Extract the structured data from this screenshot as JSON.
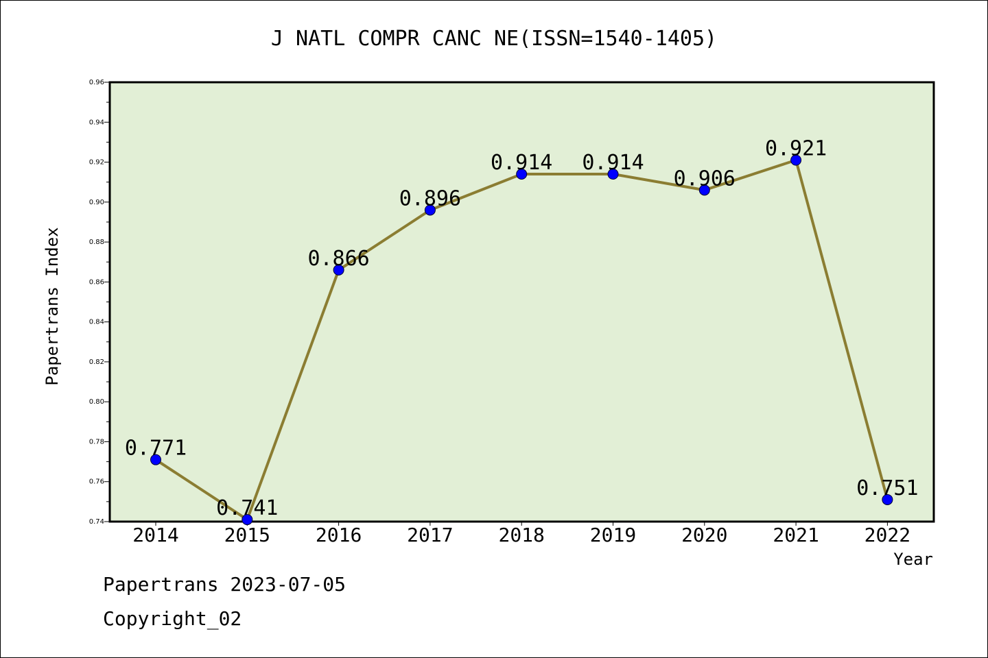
{
  "chart_data": {
    "type": "line",
    "title": "J NATL COMPR CANC NE(ISSN=1540-1405)",
    "xlabel": "Year",
    "ylabel": "Papertrans Index",
    "categories": [
      "2014",
      "2015",
      "2016",
      "2017",
      "2018",
      "2019",
      "2020",
      "2021",
      "2022"
    ],
    "values": [
      0.771,
      0.741,
      0.866,
      0.896,
      0.914,
      0.914,
      0.906,
      0.921,
      0.751
    ],
    "data_labels": [
      "0.771",
      "0.741",
      "0.866",
      "0.896",
      "0.914",
      "0.914",
      "0.906",
      "0.921",
      "0.751"
    ],
    "ylim": [
      0.74,
      0.96
    ],
    "y_ticks": [
      "0.74",
      "0.76",
      "0.78",
      "0.80",
      "0.82",
      "0.84",
      "0.86",
      "0.88",
      "0.90",
      "0.92",
      "0.94",
      "0.96"
    ],
    "grid": false,
    "colors": {
      "plot_background": "#e2efd6",
      "line": "#8b7d32",
      "marker": "#0000ff"
    }
  },
  "footer": {
    "line1": "Papertrans 2023-07-05",
    "line2": "Copyright_02"
  }
}
